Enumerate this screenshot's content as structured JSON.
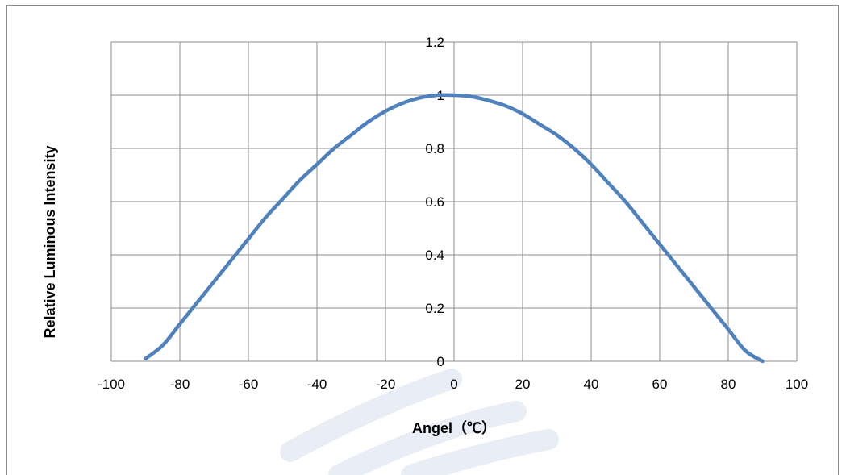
{
  "chart_data": {
    "type": "line",
    "title": "",
    "xlabel": "Angel（℃）",
    "ylabel": "Relative Luminous Intensity",
    "xlim": [
      -100,
      100
    ],
    "ylim": [
      0,
      1.2
    ],
    "xticks": [
      "-100",
      "-80",
      "-60",
      "-40",
      "-20",
      "0",
      "20",
      "40",
      "60",
      "80",
      "100"
    ],
    "yticks": [
      "0",
      "0.2",
      "0.4",
      "0.6",
      "0.8",
      "1",
      "1.2"
    ],
    "grid": true,
    "legend": "none",
    "line_color": "#4f81bd",
    "series": [
      {
        "x": [
          -90,
          -85,
          -80,
          -75,
          -70,
          -65,
          -60,
          -55,
          -50,
          -45,
          -40,
          -35,
          -30,
          -25,
          -20,
          -15,
          -10,
          -5,
          0,
          5,
          10,
          15,
          20,
          25,
          30,
          35,
          40,
          45,
          50,
          55,
          60,
          65,
          70,
          75,
          80,
          85,
          90
        ],
        "y": [
          0.01,
          0.06,
          0.14,
          0.22,
          0.3,
          0.38,
          0.46,
          0.54,
          0.61,
          0.68,
          0.74,
          0.8,
          0.85,
          0.9,
          0.94,
          0.97,
          0.99,
          1.0,
          1.0,
          0.995,
          0.98,
          0.96,
          0.93,
          0.89,
          0.85,
          0.8,
          0.74,
          0.67,
          0.6,
          0.52,
          0.44,
          0.36,
          0.28,
          0.2,
          0.12,
          0.04,
          0.0
        ]
      }
    ]
  }
}
